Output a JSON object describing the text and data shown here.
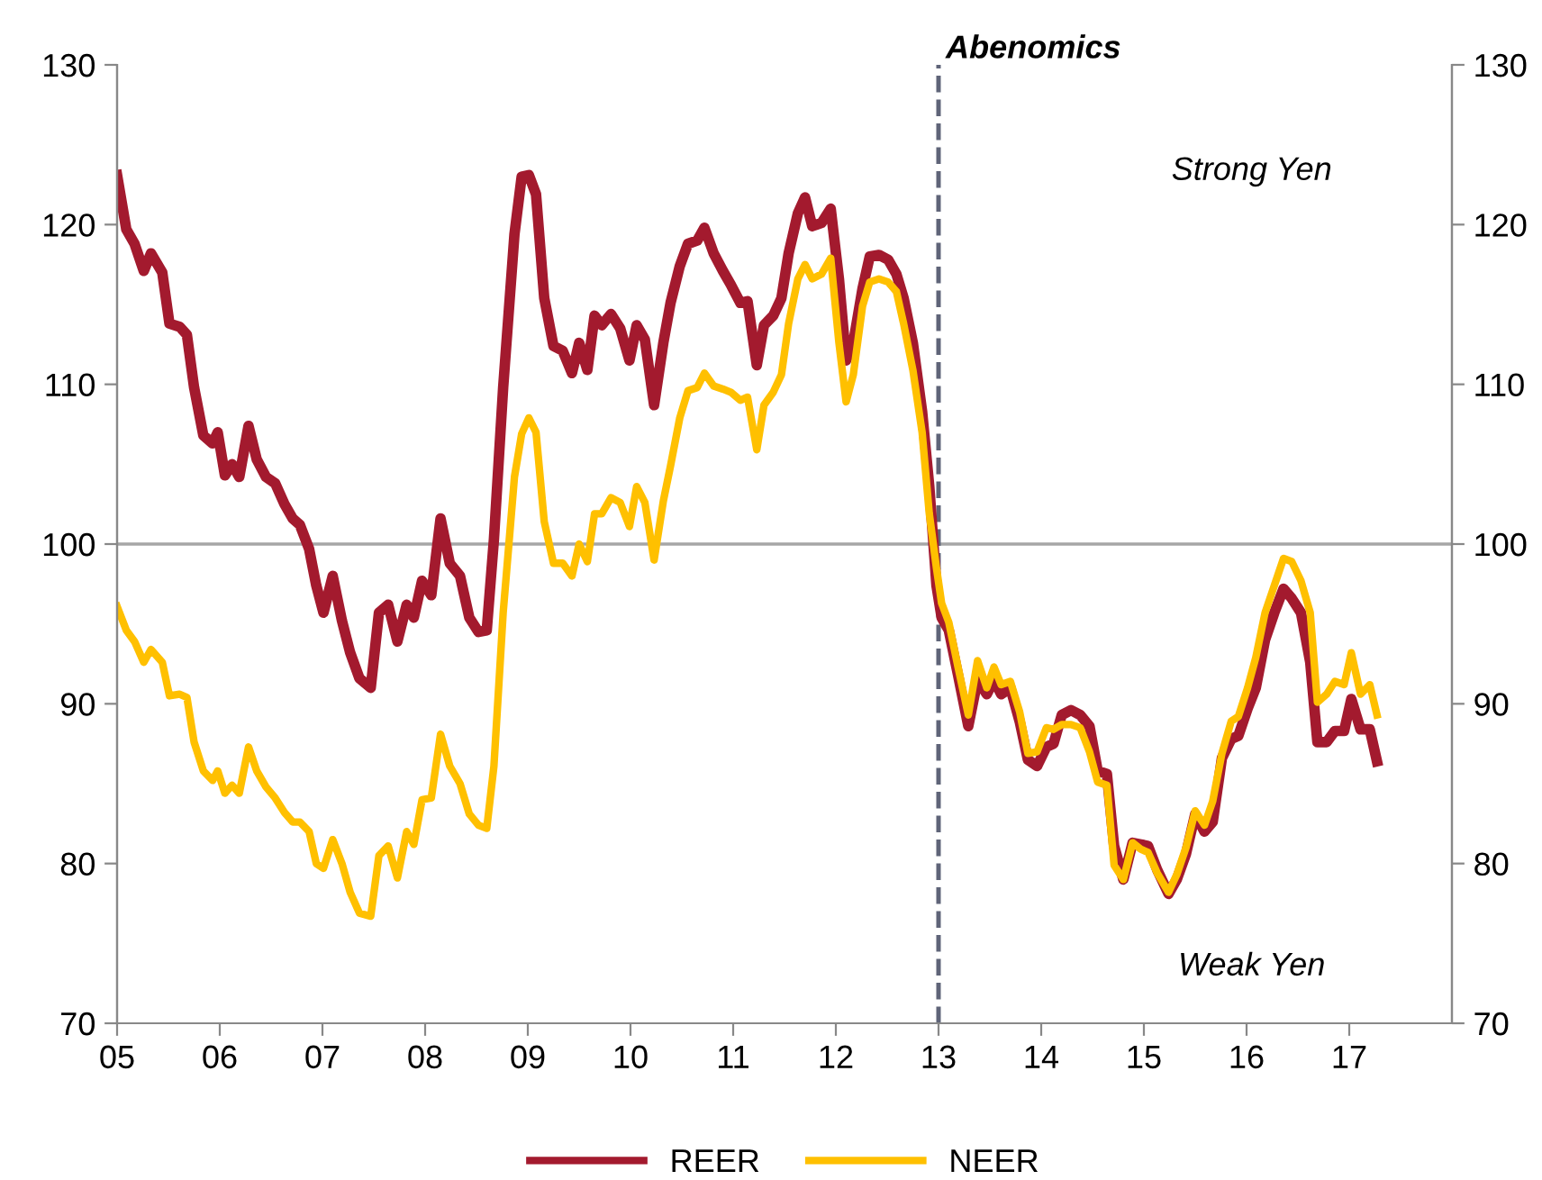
{
  "chart_data": {
    "type": "line",
    "x": [
      2005.0,
      2005.09,
      2005.17,
      2005.26,
      2005.33,
      2005.44,
      2005.51,
      2005.61,
      2005.68,
      2005.75,
      2005.84,
      2005.93,
      2005.98,
      2006.05,
      2006.12,
      2006.19,
      2006.28,
      2006.36,
      2006.45,
      2006.54,
      2006.63,
      2006.71,
      2006.78,
      2006.87,
      2006.94,
      2007.01,
      2007.1,
      2007.19,
      2007.27,
      2007.36,
      2007.47,
      2007.55,
      2007.64,
      2007.73,
      2007.82,
      2007.89,
      2007.97,
      2008.06,
      2008.15,
      2008.24,
      2008.34,
      2008.43,
      2008.52,
      2008.6,
      2008.67,
      2008.76,
      2008.87,
      2008.94,
      2009.01,
      2009.08,
      2009.16,
      2009.25,
      2009.34,
      2009.43,
      2009.5,
      2009.58,
      2009.65,
      2009.72,
      2009.81,
      2009.9,
      2009.99,
      2010.06,
      2010.14,
      2010.23,
      2010.32,
      2010.39,
      2010.48,
      2010.56,
      2010.65,
      2010.72,
      2010.81,
      2010.9,
      2010.98,
      2011.07,
      2011.14,
      2011.23,
      2011.3,
      2011.39,
      2011.47,
      2011.54,
      2011.63,
      2011.7,
      2011.77,
      2011.86,
      2011.95,
      2012.03,
      2012.1,
      2012.17,
      2012.26,
      2012.33,
      2012.42,
      2012.51,
      2012.59,
      2012.66,
      2012.75,
      2012.84,
      2012.91,
      2012.98,
      2013.03,
      2013.1,
      2013.19,
      2013.29,
      2013.38,
      2013.47,
      2013.54,
      2013.61,
      2013.7,
      2013.79,
      2013.87,
      2013.96,
      2014.05,
      2014.12,
      2014.2,
      2014.29,
      2014.38,
      2014.47,
      2014.55,
      2014.64,
      2014.71,
      2014.8,
      2014.89,
      2014.97,
      2015.04,
      2015.13,
      2015.24,
      2015.32,
      2015.41,
      2015.5,
      2015.59,
      2015.67,
      2015.76,
      2015.85,
      2015.92,
      2016.01,
      2016.09,
      2016.18,
      2016.27,
      2016.36,
      2016.44,
      2016.53,
      2016.62,
      2016.69,
      2016.78,
      2016.86,
      2016.95,
      2017.02,
      2017.11,
      2017.2,
      2017.27
    ],
    "series": [
      {
        "name": "REER",
        "color": "#a31a2e",
        "values": [
          123.1,
          119.7,
          118.8,
          117.1,
          118.2,
          117.0,
          113.8,
          113.6,
          113.1,
          109.8,
          106.8,
          106.3,
          107.0,
          104.3,
          105.0,
          104.2,
          107.4,
          105.3,
          104.2,
          103.8,
          102.5,
          101.6,
          101.2,
          99.7,
          97.4,
          95.7,
          98.0,
          95.2,
          93.2,
          91.6,
          91.0,
          95.7,
          96.2,
          93.9,
          96.2,
          95.4,
          97.7,
          96.8,
          101.6,
          98.8,
          98.0,
          95.4,
          94.5,
          94.6,
          100.3,
          109.8,
          119.4,
          123.0,
          123.1,
          121.9,
          115.4,
          112.4,
          112.1,
          110.7,
          112.6,
          110.9,
          114.3,
          113.7,
          114.4,
          113.5,
          111.5,
          113.7,
          112.8,
          108.7,
          112.6,
          115.1,
          117.4,
          118.8,
          119.0,
          119.8,
          118.2,
          117.1,
          116.2,
          115.1,
          115.2,
          111.2,
          113.7,
          114.3,
          115.4,
          118.2,
          120.7,
          121.7,
          119.9,
          120.1,
          121.0,
          116.6,
          111.5,
          112.6,
          116.0,
          118.0,
          118.1,
          117.8,
          116.9,
          115.4,
          112.6,
          108.3,
          103.6,
          97.4,
          95.4,
          94.6,
          91.8,
          88.6,
          91.5,
          90.6,
          91.5,
          90.6,
          91.0,
          88.9,
          86.5,
          86.1,
          87.3,
          87.5,
          89.3,
          89.6,
          89.3,
          88.6,
          85.8,
          85.6,
          81.1,
          79.0,
          81.3,
          81.2,
          81.1,
          79.6,
          78.1,
          79.0,
          80.6,
          83.1,
          82.0,
          82.6,
          86.6,
          87.8,
          88.0,
          89.7,
          91.0,
          94.0,
          95.7,
          97.2,
          96.6,
          95.7,
          92.6,
          87.6,
          87.6,
          88.3,
          88.3,
          90.3,
          88.4,
          88.4,
          86.4
        ]
      },
      {
        "name": "NEER",
        "color": "#ffc000",
        "values": [
          96.1,
          94.6,
          93.9,
          92.6,
          93.4,
          92.6,
          90.5,
          90.6,
          90.4,
          87.6,
          85.8,
          85.2,
          85.8,
          84.4,
          84.9,
          84.4,
          87.3,
          85.8,
          84.8,
          84.1,
          83.2,
          82.6,
          82.6,
          82.0,
          80.0,
          79.7,
          81.5,
          80.0,
          78.2,
          76.9,
          76.7,
          80.5,
          81.1,
          79.1,
          82.0,
          81.2,
          84.0,
          84.1,
          88.1,
          86.1,
          85.0,
          83.1,
          82.4,
          82.2,
          86.1,
          95.7,
          104.2,
          106.9,
          107.9,
          107.0,
          101.4,
          98.8,
          98.8,
          98.0,
          100.0,
          98.9,
          101.9,
          101.9,
          102.9,
          102.6,
          101.1,
          103.6,
          102.6,
          99.0,
          102.7,
          104.9,
          107.9,
          109.6,
          109.8,
          110.7,
          109.9,
          109.7,
          109.5,
          109.0,
          109.2,
          105.9,
          108.7,
          109.5,
          110.6,
          113.8,
          116.6,
          117.5,
          116.6,
          116.9,
          117.9,
          112.6,
          108.9,
          110.6,
          114.9,
          116.4,
          116.6,
          116.4,
          115.8,
          113.8,
          110.9,
          107.0,
          101.9,
          98.5,
          96.3,
          95.1,
          92.3,
          89.3,
          92.7,
          91.0,
          92.3,
          91.2,
          91.4,
          89.5,
          86.9,
          87.0,
          88.5,
          88.4,
          88.7,
          88.7,
          88.5,
          87.0,
          85.1,
          84.9,
          79.9,
          79.0,
          81.3,
          80.9,
          80.7,
          79.4,
          78.2,
          79.3,
          81.0,
          83.3,
          82.4,
          83.9,
          86.9,
          88.9,
          89.2,
          91.0,
          92.9,
          95.7,
          97.4,
          99.1,
          98.9,
          97.7,
          95.7,
          90.1,
          90.6,
          91.4,
          91.2,
          93.2,
          90.6,
          91.2,
          89.3
        ]
      }
    ],
    "xlim": [
      2005,
      2018
    ],
    "xticks": [
      {
        "value": 2005,
        "label": "05"
      },
      {
        "value": 2006,
        "label": "06"
      },
      {
        "value": 2007,
        "label": "07"
      },
      {
        "value": 2008,
        "label": "08"
      },
      {
        "value": 2009,
        "label": "09"
      },
      {
        "value": 2010,
        "label": "10"
      },
      {
        "value": 2011,
        "label": "11"
      },
      {
        "value": 2012,
        "label": "12"
      },
      {
        "value": 2013,
        "label": "13"
      },
      {
        "value": 2014,
        "label": "14"
      },
      {
        "value": 2015,
        "label": "15"
      },
      {
        "value": 2016,
        "label": "16"
      },
      {
        "value": 2017,
        "label": "17"
      }
    ],
    "ylim": [
      70,
      130
    ],
    "yticks": [
      70,
      80,
      90,
      100,
      110,
      120,
      130
    ],
    "y2lim": [
      70,
      130
    ],
    "y2ticks": [
      70,
      80,
      90,
      100,
      110,
      120,
      130
    ],
    "ref_lines": [
      {
        "axis": "y",
        "value": 100,
        "color": "#a6a6a6",
        "line_style": "solid"
      },
      {
        "axis": "x",
        "value": 2013,
        "label": "Abenomics",
        "color": "#5f6478",
        "line_style": "dashed"
      }
    ],
    "annotations": [
      "Strong Yen",
      "Weak Yen"
    ],
    "legend": "bottom",
    "grid": false,
    "marker": "none",
    "line_style": "solid"
  }
}
